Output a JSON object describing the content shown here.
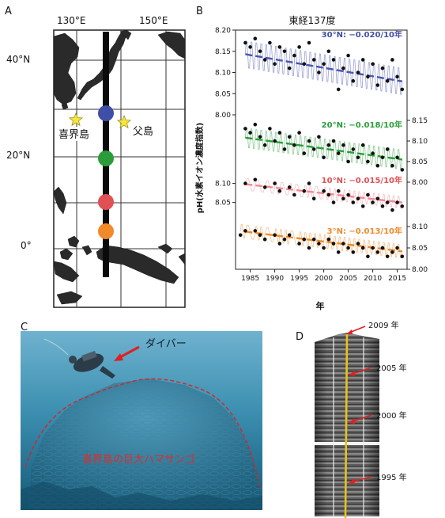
{
  "panels": {
    "a": {
      "letter": "A",
      "lon_labels": [
        "130°E",
        "150°E"
      ],
      "lat_labels": [
        "40°N",
        "20°N",
        "0°"
      ],
      "stars": [
        "喜界島",
        "父島"
      ],
      "station_colors": [
        "#3f4fa6",
        "#2a9d3a",
        "#e05055",
        "#f08a2a"
      ]
    },
    "b": {
      "letter": "B",
      "title": "東経137度",
      "ylabel": "pH(水素イオン濃度指数)",
      "xlabel": "年"
    },
    "c": {
      "letter": "C",
      "diver_label": "ダイバー",
      "coral_label": "喜界島の巨大ハマサンゴ"
    },
    "d": {
      "letter": "D",
      "year_labels": [
        "2009 年",
        "2005 年",
        "2000 年",
        "1995 年"
      ]
    }
  },
  "chart_data": {
    "type": "line",
    "title": "東経137度",
    "xlabel": "年",
    "ylabel": "pH(水素イオン濃度指数)",
    "xlim": [
      1982,
      2017
    ],
    "x_ticks": [
      1985,
      1990,
      1995,
      2000,
      2005,
      2010,
      2015
    ],
    "series": [
      {
        "name": "30°N: −0.020/10年",
        "color": "#3f4fa6",
        "trend_color": "#4a55b0",
        "ylim": [
          8.0,
          8.2
        ],
        "y_ticks": [
          "8.00",
          "8.05",
          "8.10",
          "8.15",
          "8.20"
        ],
        "axis_side": "left",
        "trend": {
          "start": [
            1984,
            8.143
          ],
          "end": [
            2016,
            8.079
          ]
        },
        "points": [
          [
            1984,
            8.17
          ],
          [
            1985,
            8.16
          ],
          [
            1986,
            8.18
          ],
          [
            1987,
            8.15
          ],
          [
            1988,
            8.13
          ],
          [
            1989,
            8.17
          ],
          [
            1990,
            8.12
          ],
          [
            1991,
            8.16
          ],
          [
            1992,
            8.15
          ],
          [
            1993,
            8.11
          ],
          [
            1994,
            8.14
          ],
          [
            1995,
            8.16
          ],
          [
            1996,
            8.12
          ],
          [
            1997,
            8.17
          ],
          [
            1998,
            8.13
          ],
          [
            1999,
            8.1
          ],
          [
            2000,
            8.12
          ],
          [
            2001,
            8.15
          ],
          [
            2002,
            8.13
          ],
          [
            2003,
            8.06
          ],
          [
            2004,
            8.11
          ],
          [
            2005,
            8.14
          ],
          [
            2006,
            8.08
          ],
          [
            2007,
            8.1
          ],
          [
            2008,
            8.13
          ],
          [
            2009,
            8.09
          ],
          [
            2010,
            8.12
          ],
          [
            2011,
            8.07
          ],
          [
            2012,
            8.11
          ],
          [
            2013,
            8.08
          ],
          [
            2014,
            8.13
          ],
          [
            2015,
            8.09
          ],
          [
            2016,
            8.06
          ]
        ]
      },
      {
        "name": "20°N: −0.018/10年",
        "color": "#2a9d3a",
        "trend_color": "#2a9d3a",
        "ylim": [
          8.0,
          8.15
        ],
        "y_ticks": [
          "8.00",
          "8.05",
          "8.10",
          "8.15"
        ],
        "axis_side": "right",
        "trend": {
          "start": [
            1984,
            8.108
          ],
          "end": [
            2016,
            8.055
          ]
        },
        "points": [
          [
            1984,
            8.13
          ],
          [
            1985,
            8.12
          ],
          [
            1986,
            8.14
          ],
          [
            1987,
            8.11
          ],
          [
            1988,
            8.09
          ],
          [
            1989,
            8.13
          ],
          [
            1990,
            8.1
          ],
          [
            1991,
            8.12
          ],
          [
            1992,
            8.08
          ],
          [
            1993,
            8.11
          ],
          [
            1994,
            8.09
          ],
          [
            1995,
            8.12
          ],
          [
            1996,
            8.07
          ],
          [
            1997,
            8.1
          ],
          [
            1998,
            8.08
          ],
          [
            1999,
            8.11
          ],
          [
            2000,
            8.06
          ],
          [
            2001,
            8.09
          ],
          [
            2002,
            8.1
          ],
          [
            2003,
            8.07
          ],
          [
            2004,
            8.09
          ],
          [
            2005,
            8.05
          ],
          [
            2006,
            8.08
          ],
          [
            2007,
            8.06
          ],
          [
            2008,
            8.09
          ],
          [
            2009,
            8.05
          ],
          [
            2010,
            8.07
          ],
          [
            2011,
            8.04
          ],
          [
            2012,
            8.06
          ],
          [
            2013,
            8.08
          ],
          [
            2014,
            8.04
          ],
          [
            2015,
            8.06
          ],
          [
            2016,
            8.03
          ]
        ]
      },
      {
        "name": "10°N: −0.015/10年",
        "color": "#e05055",
        "trend_color": "#f08a94",
        "ylim": [
          8.02,
          8.12
        ],
        "y_ticks": [
          "8.05",
          "8.10"
        ],
        "axis_side": "left",
        "trend": {
          "start": [
            1984,
            8.098
          ],
          "end": [
            2016,
            8.05
          ]
        },
        "points": [
          [
            1984,
            8.1
          ],
          [
            1986,
            8.11
          ],
          [
            1988,
            8.09
          ],
          [
            1990,
            8.1
          ],
          [
            1991,
            8.08
          ],
          [
            1993,
            8.09
          ],
          [
            1994,
            8.07
          ],
          [
            1996,
            8.08
          ],
          [
            1997,
            8.1
          ],
          [
            1998,
            8.06
          ],
          [
            2000,
            8.08
          ],
          [
            2001,
            8.07
          ],
          [
            2002,
            8.05
          ],
          [
            2003,
            8.08
          ],
          [
            2004,
            8.06
          ],
          [
            2005,
            8.07
          ],
          [
            2006,
            8.05
          ],
          [
            2007,
            8.06
          ],
          [
            2008,
            8.04
          ],
          [
            2009,
            8.07
          ],
          [
            2010,
            8.05
          ],
          [
            2011,
            8.06
          ],
          [
            2012,
            8.04
          ],
          [
            2013,
            8.05
          ],
          [
            2014,
            8.03
          ],
          [
            2015,
            8.05
          ],
          [
            2016,
            8.04
          ]
        ]
      },
      {
        "name": "3°N: −0.013/10年",
        "color": "#f08a2a",
        "trend_color": "#f08a2a",
        "ylim": [
          8.0,
          8.1
        ],
        "y_ticks": [
          "8.00",
          "8.05",
          "8.10"
        ],
        "axis_side": "right",
        "trend": {
          "start": [
            1984,
            8.088
          ],
          "end": [
            2016,
            8.042
          ]
        },
        "points": [
          [
            1983,
            8.08
          ],
          [
            1984,
            8.09
          ],
          [
            1986,
            8.09
          ],
          [
            1987,
            8.08
          ],
          [
            1988,
            8.07
          ],
          [
            1990,
            8.08
          ],
          [
            1991,
            8.06
          ],
          [
            1992,
            8.07
          ],
          [
            1993,
            8.08
          ],
          [
            1995,
            8.06
          ],
          [
            1996,
            8.07
          ],
          [
            1997,
            8.05
          ],
          [
            1998,
            8.07
          ],
          [
            1999,
            8.06
          ],
          [
            2000,
            8.05
          ],
          [
            2001,
            8.07
          ],
          [
            2002,
            8.06
          ],
          [
            2003,
            8.04
          ],
          [
            2004,
            8.06
          ],
          [
            2005,
            8.05
          ],
          [
            2006,
            8.04
          ],
          [
            2007,
            8.06
          ],
          [
            2008,
            8.05
          ],
          [
            2009,
            8.03
          ],
          [
            2010,
            8.05
          ],
          [
            2011,
            8.04
          ],
          [
            2012,
            8.05
          ],
          [
            2013,
            8.03
          ],
          [
            2014,
            8.04
          ],
          [
            2015,
            8.05
          ],
          [
            2016,
            8.03
          ]
        ]
      }
    ]
  }
}
